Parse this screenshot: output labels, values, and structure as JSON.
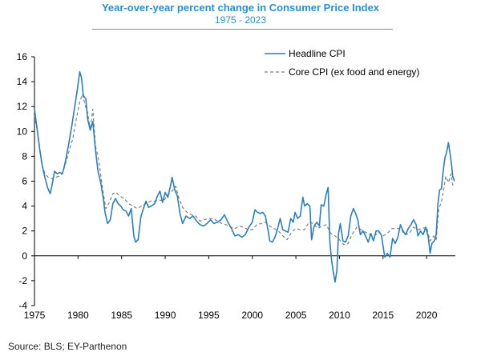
{
  "header": {
    "title": "Year-over-year percent change in Consumer Price Index",
    "subtitle": "1975 - 2023"
  },
  "footer": {
    "source": "Source: BLS; EY-Parthenon"
  },
  "colors": {
    "headline": "#2a7fc0",
    "core": "#7f7f7f",
    "title": "#2a8fcf"
  },
  "chart_data": {
    "type": "line",
    "xlim": [
      1975,
      2023.3
    ],
    "ylim": [
      -4,
      16
    ],
    "x_ticks": [
      1975,
      1980,
      1985,
      1990,
      1995,
      2000,
      2005,
      2010,
      2015,
      2020
    ],
    "y_ticks": [
      -4,
      -2,
      0,
      2,
      4,
      6,
      8,
      10,
      12,
      14,
      16
    ],
    "legend_position": "top-right",
    "grid": false,
    "series": [
      {
        "name": "Headline CPI",
        "style": "solid",
        "color": "#2a7fc0",
        "points": [
          [
            1975.0,
            11.8
          ],
          [
            1975.3,
            10.2
          ],
          [
            1975.6,
            8.6
          ],
          [
            1975.9,
            7.2
          ],
          [
            1976.2,
            6.3
          ],
          [
            1976.5,
            5.5
          ],
          [
            1976.8,
            5.0
          ],
          [
            1977.0,
            5.6
          ],
          [
            1977.3,
            6.8
          ],
          [
            1977.6,
            6.6
          ],
          [
            1977.9,
            6.7
          ],
          [
            1978.2,
            6.6
          ],
          [
            1978.5,
            7.4
          ],
          [
            1978.8,
            8.5
          ],
          [
            1979.0,
            9.3
          ],
          [
            1979.3,
            10.5
          ],
          [
            1979.6,
            11.9
          ],
          [
            1979.9,
            13.3
          ],
          [
            1980.2,
            14.8
          ],
          [
            1980.4,
            14.3
          ],
          [
            1980.6,
            12.9
          ],
          [
            1980.9,
            12.6
          ],
          [
            1981.1,
            11.0
          ],
          [
            1981.4,
            10.1
          ],
          [
            1981.7,
            10.8
          ],
          [
            1982.0,
            8.5
          ],
          [
            1982.3,
            6.8
          ],
          [
            1982.6,
            5.9
          ],
          [
            1982.9,
            4.6
          ],
          [
            1983.1,
            3.5
          ],
          [
            1983.4,
            2.6
          ],
          [
            1983.7,
            2.9
          ],
          [
            1984.0,
            4.2
          ],
          [
            1984.3,
            4.6
          ],
          [
            1984.6,
            4.2
          ],
          [
            1984.9,
            4.0
          ],
          [
            1985.2,
            3.7
          ],
          [
            1985.5,
            3.6
          ],
          [
            1985.8,
            3.2
          ],
          [
            1986.1,
            3.8
          ],
          [
            1986.4,
            1.6
          ],
          [
            1986.6,
            1.1
          ],
          [
            1986.9,
            1.3
          ],
          [
            1987.2,
            3.1
          ],
          [
            1987.5,
            3.8
          ],
          [
            1987.8,
            4.4
          ],
          [
            1988.1,
            3.9
          ],
          [
            1988.4,
            4.0
          ],
          [
            1988.8,
            4.2
          ],
          [
            1989.1,
            4.8
          ],
          [
            1989.4,
            5.2
          ],
          [
            1989.7,
            4.3
          ],
          [
            1990.0,
            5.1
          ],
          [
            1990.3,
            4.7
          ],
          [
            1990.6,
            5.6
          ],
          [
            1990.8,
            6.3
          ],
          [
            1991.1,
            5.3
          ],
          [
            1991.4,
            4.8
          ],
          [
            1991.7,
            3.4
          ],
          [
            1992.0,
            2.6
          ],
          [
            1992.4,
            3.2
          ],
          [
            1992.8,
            3.0
          ],
          [
            1993.2,
            3.2
          ],
          [
            1993.6,
            2.8
          ],
          [
            1994.0,
            2.5
          ],
          [
            1994.4,
            2.4
          ],
          [
            1994.8,
            2.6
          ],
          [
            1995.2,
            2.9
          ],
          [
            1995.6,
            2.6
          ],
          [
            1996.0,
            2.7
          ],
          [
            1996.4,
            2.9
          ],
          [
            1996.8,
            3.3
          ],
          [
            1997.2,
            2.7
          ],
          [
            1997.6,
            2.2
          ],
          [
            1998.0,
            1.6
          ],
          [
            1998.4,
            1.7
          ],
          [
            1998.8,
            1.5
          ],
          [
            1999.2,
            1.7
          ],
          [
            1999.6,
            2.3
          ],
          [
            2000.0,
            2.7
          ],
          [
            2000.3,
            3.7
          ],
          [
            2000.6,
            3.5
          ],
          [
            2000.9,
            3.4
          ],
          [
            2001.2,
            3.5
          ],
          [
            2001.5,
            3.2
          ],
          [
            2001.8,
            2.1
          ],
          [
            2002.0,
            1.2
          ],
          [
            2002.3,
            1.1
          ],
          [
            2002.6,
            1.5
          ],
          [
            2002.9,
            2.2
          ],
          [
            2003.2,
            3.0
          ],
          [
            2003.5,
            2.1
          ],
          [
            2003.8,
            2.0
          ],
          [
            2004.1,
            1.9
          ],
          [
            2004.4,
            3.0
          ],
          [
            2004.7,
            2.7
          ],
          [
            2004.9,
            3.5
          ],
          [
            2005.2,
            3.0
          ],
          [
            2005.5,
            3.2
          ],
          [
            2005.8,
            4.7
          ],
          [
            2006.0,
            4.0
          ],
          [
            2006.3,
            4.2
          ],
          [
            2006.6,
            4.0
          ],
          [
            2006.8,
            1.3
          ],
          [
            2007.1,
            2.4
          ],
          [
            2007.4,
            2.7
          ],
          [
            2007.7,
            2.4
          ],
          [
            2007.9,
            4.1
          ],
          [
            2008.2,
            4.0
          ],
          [
            2008.5,
            5.0
          ],
          [
            2008.7,
            5.5
          ],
          [
            2008.9,
            1.1
          ],
          [
            2009.1,
            -0.4
          ],
          [
            2009.3,
            -1.3
          ],
          [
            2009.5,
            -2.1
          ],
          [
            2009.7,
            -1.2
          ],
          [
            2009.9,
            1.8
          ],
          [
            2010.1,
            2.6
          ],
          [
            2010.4,
            1.2
          ],
          [
            2010.7,
            1.1
          ],
          [
            2011.0,
            1.6
          ],
          [
            2011.3,
            3.2
          ],
          [
            2011.6,
            3.8
          ],
          [
            2011.8,
            3.5
          ],
          [
            2012.1,
            2.9
          ],
          [
            2012.4,
            1.7
          ],
          [
            2012.7,
            2.0
          ],
          [
            2013.0,
            1.6
          ],
          [
            2013.3,
            1.1
          ],
          [
            2013.6,
            1.8
          ],
          [
            2013.9,
            1.2
          ],
          [
            2014.2,
            2.0
          ],
          [
            2014.5,
            2.0
          ],
          [
            2014.8,
            1.7
          ],
          [
            2015.0,
            0.8
          ],
          [
            2015.2,
            -0.1
          ],
          [
            2015.5,
            0.2
          ],
          [
            2015.8,
            -0.1
          ],
          [
            2016.1,
            1.4
          ],
          [
            2016.4,
            1.0
          ],
          [
            2016.7,
            1.5
          ],
          [
            2017.0,
            2.5
          ],
          [
            2017.3,
            2.0
          ],
          [
            2017.6,
            1.7
          ],
          [
            2017.9,
            2.2
          ],
          [
            2018.2,
            2.5
          ],
          [
            2018.5,
            2.9
          ],
          [
            2018.8,
            2.5
          ],
          [
            2019.0,
            1.6
          ],
          [
            2019.3,
            2.0
          ],
          [
            2019.6,
            1.7
          ],
          [
            2019.9,
            2.3
          ],
          [
            2020.2,
            1.5
          ],
          [
            2020.4,
            0.2
          ],
          [
            2020.6,
            1.0
          ],
          [
            2020.9,
            1.2
          ],
          [
            2021.1,
            1.7
          ],
          [
            2021.3,
            4.2
          ],
          [
            2021.5,
            5.3
          ],
          [
            2021.7,
            5.4
          ],
          [
            2021.9,
            6.8
          ],
          [
            2022.1,
            7.9
          ],
          [
            2022.3,
            8.3
          ],
          [
            2022.5,
            9.1
          ],
          [
            2022.7,
            8.2
          ],
          [
            2022.9,
            7.1
          ],
          [
            2023.0,
            6.4
          ],
          [
            2023.2,
            6.0
          ]
        ]
      },
      {
        "name": "Core CPI (ex food and energy)",
        "style": "dashed",
        "color": "#7f7f7f",
        "points": [
          [
            1975.0,
            11.3
          ],
          [
            1975.4,
            9.8
          ],
          [
            1975.8,
            7.5
          ],
          [
            1976.2,
            6.6
          ],
          [
            1976.6,
            6.3
          ],
          [
            1977.0,
            6.2
          ],
          [
            1977.4,
            6.3
          ],
          [
            1977.8,
            6.4
          ],
          [
            1978.2,
            6.6
          ],
          [
            1978.6,
            7.5
          ],
          [
            1979.0,
            8.5
          ],
          [
            1979.4,
            9.4
          ],
          [
            1979.8,
            11.0
          ],
          [
            1980.2,
            12.4
          ],
          [
            1980.5,
            13.0
          ],
          [
            1980.8,
            12.2
          ],
          [
            1981.1,
            11.5
          ],
          [
            1981.4,
            10.1
          ],
          [
            1981.7,
            11.8
          ],
          [
            1982.0,
            8.8
          ],
          [
            1982.3,
            8.0
          ],
          [
            1982.6,
            6.5
          ],
          [
            1982.9,
            5.0
          ],
          [
            1983.2,
            3.8
          ],
          [
            1983.6,
            4.3
          ],
          [
            1984.0,
            5.0
          ],
          [
            1984.4,
            5.1
          ],
          [
            1984.8,
            4.8
          ],
          [
            1985.3,
            4.6
          ],
          [
            1985.8,
            4.2
          ],
          [
            1986.3,
            4.0
          ],
          [
            1986.8,
            3.8
          ],
          [
            1987.3,
            4.0
          ],
          [
            1987.8,
            4.2
          ],
          [
            1988.3,
            4.4
          ],
          [
            1988.8,
            4.4
          ],
          [
            1989.3,
            4.5
          ],
          [
            1989.8,
            4.4
          ],
          [
            1990.3,
            4.9
          ],
          [
            1990.8,
            5.2
          ],
          [
            1991.2,
            5.6
          ],
          [
            1991.6,
            4.6
          ],
          [
            1992.0,
            3.9
          ],
          [
            1992.5,
            3.5
          ],
          [
            1993.0,
            3.3
          ],
          [
            1993.5,
            3.2
          ],
          [
            1994.0,
            2.8
          ],
          [
            1994.5,
            2.9
          ],
          [
            1995.0,
            3.0
          ],
          [
            1995.5,
            3.0
          ],
          [
            1996.0,
            2.8
          ],
          [
            1996.5,
            2.6
          ],
          [
            1997.0,
            2.5
          ],
          [
            1997.5,
            2.3
          ],
          [
            1998.0,
            2.2
          ],
          [
            1998.5,
            2.4
          ],
          [
            1999.0,
            2.3
          ],
          [
            1999.5,
            2.1
          ],
          [
            2000.0,
            2.1
          ],
          [
            2000.5,
            2.5
          ],
          [
            2001.0,
            2.6
          ],
          [
            2001.5,
            2.7
          ],
          [
            2002.0,
            2.4
          ],
          [
            2002.5,
            2.2
          ],
          [
            2003.0,
            2.0
          ],
          [
            2003.5,
            1.6
          ],
          [
            2004.0,
            1.3
          ],
          [
            2004.5,
            1.9
          ],
          [
            2005.0,
            2.2
          ],
          [
            2005.5,
            2.1
          ],
          [
            2006.0,
            2.1
          ],
          [
            2006.5,
            2.7
          ],
          [
            2007.0,
            2.6
          ],
          [
            2007.5,
            2.2
          ],
          [
            2008.0,
            2.4
          ],
          [
            2008.5,
            2.5
          ],
          [
            2009.0,
            1.8
          ],
          [
            2009.5,
            1.6
          ],
          [
            2010.0,
            1.3
          ],
          [
            2010.5,
            0.9
          ],
          [
            2011.0,
            1.0
          ],
          [
            2011.5,
            1.8
          ],
          [
            2012.0,
            2.3
          ],
          [
            2012.5,
            2.1
          ],
          [
            2013.0,
            1.9
          ],
          [
            2013.5,
            1.7
          ],
          [
            2014.0,
            1.6
          ],
          [
            2014.5,
            1.9
          ],
          [
            2015.0,
            1.6
          ],
          [
            2015.5,
            1.8
          ],
          [
            2016.0,
            2.2
          ],
          [
            2016.5,
            2.2
          ],
          [
            2017.0,
            2.2
          ],
          [
            2017.5,
            1.7
          ],
          [
            2018.0,
            1.8
          ],
          [
            2018.5,
            2.3
          ],
          [
            2019.0,
            2.1
          ],
          [
            2019.5,
            2.2
          ],
          [
            2020.0,
            2.3
          ],
          [
            2020.4,
            1.2
          ],
          [
            2020.8,
            1.6
          ],
          [
            2021.1,
            1.3
          ],
          [
            2021.4,
            3.8
          ],
          [
            2021.7,
            4.3
          ],
          [
            2022.0,
            5.5
          ],
          [
            2022.2,
            6.4
          ],
          [
            2022.5,
            5.9
          ],
          [
            2022.8,
            6.6
          ],
          [
            2023.0,
            5.7
          ],
          [
            2023.2,
            5.6
          ]
        ]
      }
    ]
  }
}
